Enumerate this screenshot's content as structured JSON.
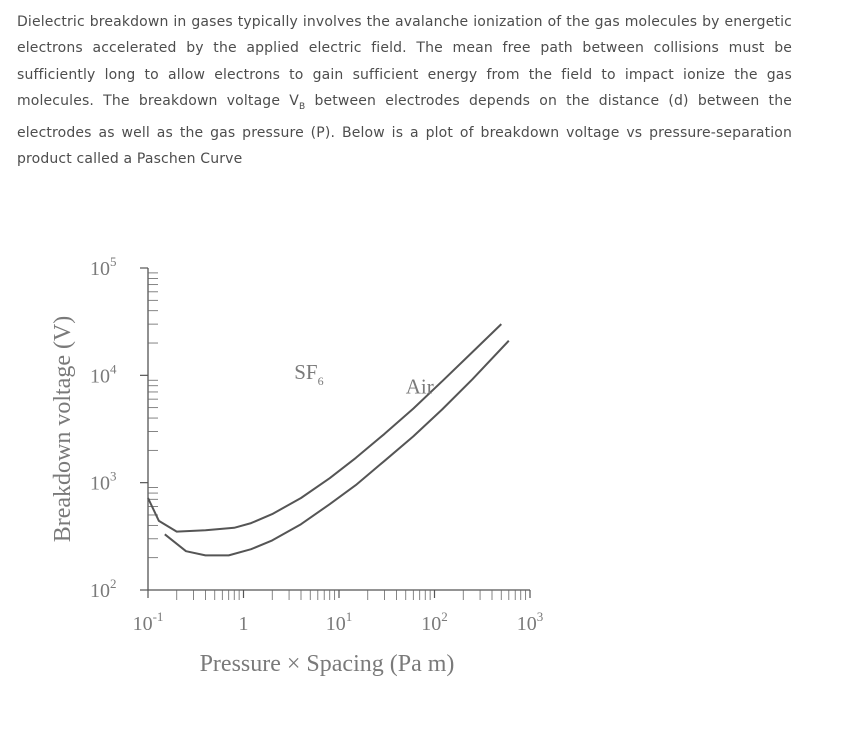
{
  "intro": {
    "before": "Dielectric breakdown in gases typically involves the avalanche ionization of the gas molecules by energetic electrons accelerated by the applied electric field. The mean free path between collisions must be sufficiently long to allow electrons to gain sufficient energy from the field to impact ionize the gas molecules. The breakdown voltage V",
    "sub": "B",
    "after": " between electrodes depends on the distance (d) between the electrodes as well as the gas pressure (P). Below is a plot of breakdown voltage vs pressure-separation product called a Paschen Curve"
  },
  "chart_data": {
    "type": "line",
    "title": "",
    "xlabel": "Pressure × Spacing (Pa m)",
    "ylabel": "Breakdown voltage (V)",
    "x_scale": "log",
    "y_scale": "log",
    "xlim": [
      0.1,
      1000
    ],
    "ylim": [
      100,
      100000
    ],
    "x_ticks": [
      {
        "value": 0.1,
        "base": "10",
        "exp": "-1"
      },
      {
        "value": 1,
        "base": "1",
        "exp": ""
      },
      {
        "value": 10,
        "base": "10",
        "exp": "1"
      },
      {
        "value": 100,
        "base": "10",
        "exp": "2"
      },
      {
        "value": 1000,
        "base": "10",
        "exp": "3"
      }
    ],
    "y_ticks": [
      {
        "value": 100,
        "base": "10",
        "exp": "2"
      },
      {
        "value": 1000,
        "base": "10",
        "exp": "3"
      },
      {
        "value": 10000,
        "base": "10",
        "exp": "4"
      },
      {
        "value": 100000,
        "base": "10",
        "exp": "5"
      }
    ],
    "grid": false,
    "legend": "none",
    "series": [
      {
        "name": "SF6",
        "label_base": "SF",
        "label_sub": "6",
        "label_at": [
          3.4,
          9200
        ],
        "color": "#555555",
        "x": [
          0.1,
          0.13,
          0.2,
          0.4,
          0.8,
          1.2,
          2,
          4,
          8,
          15,
          30,
          60,
          120,
          250,
          500
        ],
        "y": [
          720,
          440,
          350,
          360,
          380,
          420,
          510,
          720,
          1100,
          1700,
          2850,
          4900,
          8800,
          16500,
          30000
        ]
      },
      {
        "name": "Air",
        "label_base": "Air",
        "label_sub": "",
        "label_at": [
          50,
          6800
        ],
        "color": "#555555",
        "x": [
          0.15,
          0.25,
          0.4,
          0.7,
          1.2,
          2,
          4,
          8,
          15,
          30,
          60,
          120,
          250,
          600
        ],
        "y": [
          330,
          230,
          210,
          210,
          240,
          290,
          410,
          630,
          950,
          1600,
          2700,
          4800,
          9200,
          21000
        ]
      }
    ]
  }
}
